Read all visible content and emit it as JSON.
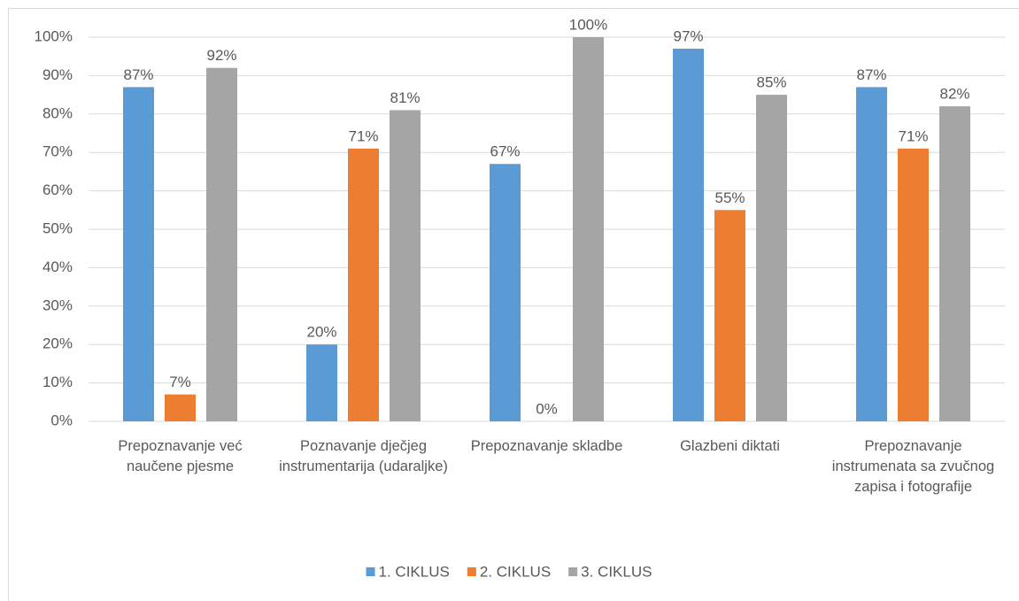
{
  "chart_data": {
    "type": "bar",
    "categories": [
      "Prepoznavanje već naučene pjesme",
      "Poznavanje dječjeg instrumentarija (udaraljke)",
      "Prepoznavanje skladbe",
      "Glazbeni diktati",
      "Prepoznavanje instrumenata sa zvučnog zapisa i fotografije"
    ],
    "series": [
      {
        "name": "1. CIKLUS",
        "color": "#5b9bd5",
        "values": [
          87,
          20,
          67,
          97,
          87
        ],
        "value_labels": [
          "87%",
          "20%",
          "67%",
          "97%",
          "87%"
        ]
      },
      {
        "name": "2. CIKLUS",
        "color": "#ed7d31",
        "values": [
          7,
          71,
          0,
          55,
          71
        ],
        "value_labels": [
          "7%",
          "71%",
          "0%",
          "55%",
          "71%"
        ]
      },
      {
        "name": "3. CIKLUS",
        "color": "#a5a5a5",
        "values": [
          92,
          81,
          100,
          85,
          82
        ],
        "value_labels": [
          "92%",
          "81%",
          "100%",
          "85%",
          "82%"
        ]
      }
    ],
    "ylim": [
      0,
      100
    ],
    "yticks": [
      {
        "value": 0,
        "label": "0%"
      },
      {
        "value": 10,
        "label": "10%"
      },
      {
        "value": 20,
        "label": "20%"
      },
      {
        "value": 30,
        "label": "30%"
      },
      {
        "value": 40,
        "label": "40%"
      },
      {
        "value": 50,
        "label": "50%"
      },
      {
        "value": 60,
        "label": "60%"
      },
      {
        "value": 70,
        "label": "70%"
      },
      {
        "value": 80,
        "label": "80%"
      },
      {
        "value": 90,
        "label": "90%"
      },
      {
        "value": 100,
        "label": "100%"
      }
    ],
    "grid": true,
    "legend": "bottom"
  }
}
